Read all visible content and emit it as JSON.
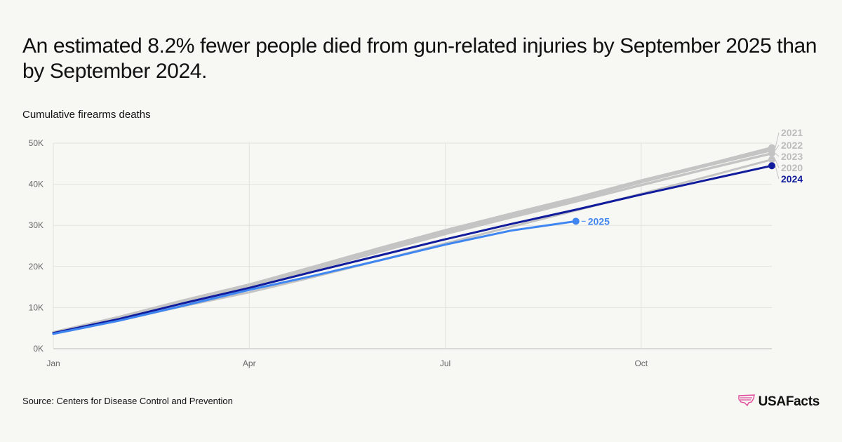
{
  "title": "An estimated 8.2% fewer people died from gun-related injuries by September 2025 than by September 2024.",
  "subtitle": "Cumulative firearms deaths",
  "source": "Source: Centers for Disease Control and Prevention",
  "logo": {
    "text": "USAFacts",
    "color": "#e0489a"
  },
  "chart_data": {
    "type": "line",
    "title": "An estimated 8.2% fewer people died from gun-related injuries by September 2025 than by September 2024.",
    "ylabel": "Cumulative firearms deaths",
    "xlabel": "",
    "xlim": [
      1,
      12
    ],
    "ylim": [
      0,
      50000
    ],
    "x_ticks": [
      {
        "value": 1,
        "label": "Jan"
      },
      {
        "value": 4,
        "label": "Apr"
      },
      {
        "value": 7,
        "label": "Jul"
      },
      {
        "value": 10,
        "label": "Oct"
      }
    ],
    "y_ticks": [
      {
        "value": 0,
        "label": "0K"
      },
      {
        "value": 10000,
        "label": "10K"
      },
      {
        "value": 20000,
        "label": "20K"
      },
      {
        "value": 30000,
        "label": "30K"
      },
      {
        "value": 40000,
        "label": "40K"
      },
      {
        "value": 50000,
        "label": "50K"
      }
    ],
    "grid": true,
    "series": [
      {
        "name": "2021",
        "color": "#c4c4c4",
        "width": 3.5,
        "label_color": "#bdbdbd",
        "x": [
          1,
          2,
          3,
          4,
          5,
          6,
          7,
          8,
          9,
          10,
          11,
          12
        ],
        "values": [
          4000,
          7700,
          11800,
          15600,
          20000,
          24500,
          28800,
          32800,
          36700,
          40900,
          44800,
          48900
        ]
      },
      {
        "name": "2022",
        "color": "#c4c4c4",
        "width": 3.5,
        "label_color": "#bdbdbd",
        "x": [
          1,
          2,
          3,
          4,
          5,
          6,
          7,
          8,
          9,
          10,
          11,
          12
        ],
        "values": [
          3950,
          7500,
          11500,
          15400,
          19700,
          24000,
          28300,
          32300,
          36300,
          40500,
          44500,
          48300
        ]
      },
      {
        "name": "2023",
        "color": "#c4c4c4",
        "width": 3.5,
        "label_color": "#bdbdbd",
        "x": [
          1,
          2,
          3,
          4,
          5,
          6,
          7,
          8,
          9,
          10,
          11,
          12
        ],
        "values": [
          3900,
          7300,
          11200,
          15000,
          19300,
          23600,
          27900,
          31900,
          35800,
          39800,
          43700,
          47500
        ]
      },
      {
        "name": "2020",
        "color": "#c4c4c4",
        "width": 3,
        "label_color": "#bdbdbd",
        "x": [
          1,
          2,
          3,
          4,
          5,
          6,
          7,
          8,
          9,
          10,
          11,
          12
        ],
        "values": [
          3600,
          6800,
          10400,
          13700,
          17500,
          21500,
          25600,
          29600,
          33600,
          37700,
          41800,
          46000
        ]
      },
      {
        "name": "2024",
        "color": "#101c9c",
        "width": 3,
        "label_color": "#101c9c",
        "x": [
          1,
          2,
          3,
          4,
          5,
          6,
          7,
          8,
          9,
          10,
          11,
          12
        ],
        "values": [
          3800,
          7200,
          11100,
          14800,
          18800,
          22700,
          26600,
          30300,
          33800,
          37500,
          41000,
          44500
        ]
      },
      {
        "name": "2025",
        "color": "#3f86f0",
        "width": 3,
        "label_color": "#3f86f0",
        "x": [
          1,
          2,
          3,
          4,
          5,
          6,
          7,
          8,
          9
        ],
        "values": [
          3600,
          6800,
          10500,
          14300,
          17800,
          21500,
          25300,
          28700,
          31000
        ]
      }
    ]
  }
}
